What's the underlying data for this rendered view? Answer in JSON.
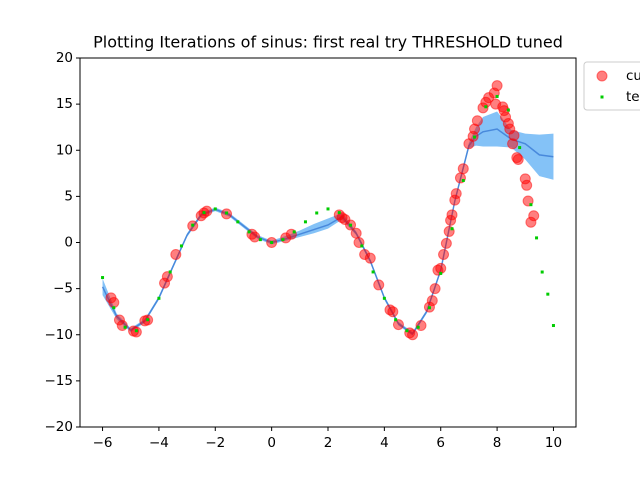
{
  "chart_data": {
    "type": "scatter",
    "title": "Plotting Iterations of sinus: first real try THRESHOLD tuned",
    "xlim": [
      -6.8,
      10.8
    ],
    "ylim": [
      -20,
      20
    ],
    "xticks": [
      {
        "value": -6,
        "label": "−6"
      },
      {
        "value": -4,
        "label": "−4"
      },
      {
        "value": -2,
        "label": "−2"
      },
      0,
      2,
      4,
      6,
      8,
      10
    ],
    "yticks": [
      {
        "value": -20,
        "label": "−20"
      },
      {
        "value": -15,
        "label": "−15"
      },
      {
        "value": -10,
        "label": "−10"
      },
      {
        "value": -5,
        "label": "−5"
      },
      0,
      5,
      10,
      15,
      20
    ],
    "legend": "outside-upper-right",
    "band": {
      "color": "#1f8ff0",
      "line_color": "#3a7bd5",
      "x": [
        -6,
        -5.5,
        -5,
        -4.5,
        -4,
        -3.5,
        -3,
        -2.5,
        -2,
        -1.5,
        -1,
        -0.5,
        0,
        0.5,
        1,
        1.5,
        2,
        2.5,
        3,
        3.5,
        4,
        4.5,
        5,
        5.5,
        6,
        6.5,
        7,
        7.25,
        7.5,
        8,
        8.5,
        9,
        9.5,
        10
      ],
      "mean": [
        -4.8,
        -8,
        -9.5,
        -8.5,
        -6,
        -2.6,
        0.8,
        3,
        3.6,
        3,
        1.8,
        0.6,
        0,
        0.4,
        0.9,
        1.4,
        1.9,
        2.8,
        1,
        -2,
        -6,
        -8.8,
        -9.9,
        -7.5,
        -3,
        4.5,
        10.5,
        11.5,
        12,
        12.3,
        11.2,
        10.7,
        9.5,
        9.3
      ],
      "lower": [
        -5.7,
        -8.3,
        -9.7,
        -8.7,
        -6.2,
        -2.8,
        0.6,
        2.8,
        3.4,
        2.8,
        1.6,
        0.4,
        -0.2,
        0.2,
        0.6,
        1.0,
        1.5,
        2.5,
        0.8,
        -2.2,
        -6.2,
        -9.0,
        -10.1,
        -7.7,
        -3.2,
        4.3,
        10.2,
        10.5,
        10.4,
        10.4,
        10.3,
        9.0,
        7.2,
        6.8
      ],
      "upper": [
        -3.9,
        -7.7,
        -9.3,
        -8.3,
        -5.8,
        -2.4,
        1.0,
        3.2,
        3.8,
        3.2,
        2.0,
        0.8,
        0.2,
        0.7,
        1.3,
        2.0,
        2.6,
        3.2,
        1.2,
        -1.8,
        -5.8,
        -8.6,
        -9.7,
        -7.3,
        -2.8,
        4.7,
        10.8,
        12.5,
        13.6,
        14.2,
        12.2,
        11.8,
        11.7,
        11.8
      ]
    },
    "series": [
      {
        "name": "cu",
        "color": "#ff0000",
        "marker": "circle",
        "x": [
          -5.7,
          -5.6,
          -5.4,
          -5.3,
          -4.9,
          -4.8,
          -4.5,
          -4.4,
          -3.8,
          -3.7,
          -3.4,
          -2.8,
          -2.5,
          -2.4,
          -2.3,
          -1.6,
          -0.7,
          -0.6,
          0,
          0.5,
          0.7,
          2.4,
          2.5,
          2.6,
          2.8,
          3.0,
          3.1,
          3.3,
          3.5,
          3.8,
          4.2,
          4.3,
          4.5,
          4.9,
          5.0,
          5.3,
          5.6,
          5.7,
          5.8,
          5.9,
          6.0,
          6.1,
          6.2,
          6.3,
          6.35,
          6.4,
          6.5,
          6.55,
          6.7,
          6.8,
          7.0,
          7.15,
          7.2,
          7.3,
          7.5,
          7.6,
          7.7,
          7.9,
          8.0,
          7.95,
          8.2,
          8.25,
          8.3,
          8.4,
          8.45,
          8.6,
          8.55,
          8.7,
          8.75,
          9.0,
          9.05,
          9.1,
          9.2,
          9.3
        ],
        "values": [
          -6,
          -6.5,
          -8.4,
          -9,
          -9.6,
          -9.7,
          -8.5,
          -8.4,
          -4.4,
          -3.7,
          -1.3,
          1.8,
          2.9,
          3.2,
          3.4,
          3.1,
          0.9,
          0.6,
          0,
          0.5,
          0.9,
          3.0,
          2.7,
          2.5,
          1.9,
          1.0,
          0,
          -1.3,
          -1.7,
          -4.6,
          -7.3,
          -7.5,
          -8.9,
          -9.8,
          -10,
          -9,
          -7,
          -6.3,
          -5,
          -3,
          -2.8,
          -1.3,
          -0.1,
          1.2,
          2.4,
          3.0,
          4.6,
          5.3,
          7,
          8,
          10.7,
          11.5,
          12.3,
          13.2,
          14.6,
          15.2,
          15.7,
          16.2,
          17,
          15,
          14.7,
          14.3,
          13.6,
          12.9,
          12.3,
          11.6,
          10.7,
          9.2,
          9,
          6.9,
          6.2,
          4.5,
          2.2,
          2.9
        ]
      },
      {
        "name": "te",
        "color": "#00cc00",
        "marker": "square",
        "x": [
          -6,
          -5.6,
          -5.2,
          -4.8,
          -4.4,
          -4,
          -3.6,
          -3.2,
          -2.8,
          -2.4,
          -2,
          -1.6,
          -1.2,
          -0.8,
          -0.4,
          0,
          0.4,
          0.8,
          1.2,
          1.6,
          2,
          2.4,
          2.8,
          3.2,
          3.6,
          4,
          4.4,
          4.8,
          5.2,
          5.6,
          6,
          6.4,
          6.8,
          7.2,
          7.6,
          8,
          8.4,
          8.8,
          9.2,
          9.4,
          9.6,
          9.8,
          10
        ],
        "values": [
          -3.8,
          -7.07,
          -9.19,
          -9.56,
          -8.37,
          -6.05,
          -3.19,
          -0.37,
          1.88,
          3.24,
          3.64,
          3.2,
          2.24,
          1.15,
          0.31,
          0,
          0.31,
          1.15,
          2.24,
          3.2,
          3.64,
          3.24,
          1.88,
          -0.37,
          -3.19,
          -6.05,
          -8.37,
          -9.56,
          -9.19,
          -7.07,
          -3.35,
          1.49,
          6.72,
          11.43,
          14.71,
          15.83,
          14.36,
          10.29,
          4.1,
          0.5,
          -3.2,
          -5.6,
          -9
        ]
      }
    ]
  }
}
